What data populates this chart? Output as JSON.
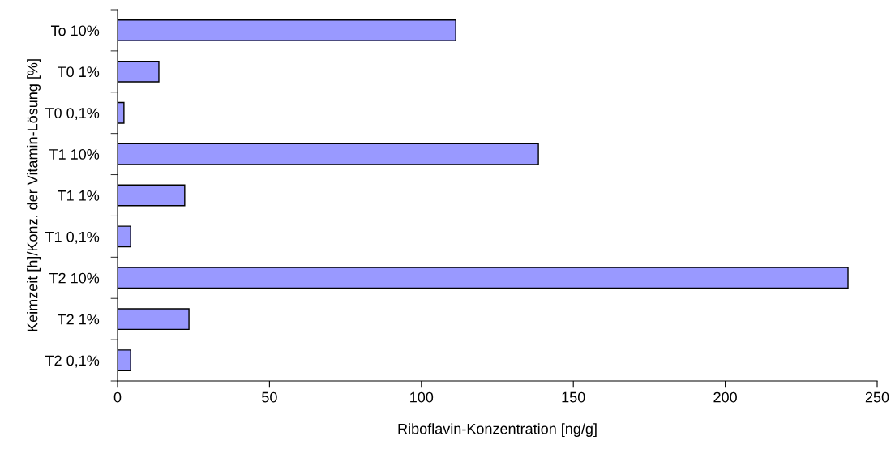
{
  "chart_data": {
    "type": "bar",
    "orientation": "horizontal",
    "xlabel": "Riboflavin-Konzentration [ng/g]",
    "ylabel": "Keimzeit [h]/Konz. der Vitamin-Lösung [%]",
    "categories": [
      "To 10%",
      "T0 1%",
      "T0 0,1%",
      "T1 10%",
      "T1 1%",
      "T1 0,1%",
      "T2 10%",
      "T2 1%",
      "T2 0,1%"
    ],
    "values": [
      111.3,
      13.6,
      2.1,
      138.5,
      22.1,
      4.3,
      240.4,
      23.5,
      4.3
    ],
    "color": "#9999ff",
    "xlim": [
      0,
      250
    ],
    "xticks": [
      0,
      50,
      100,
      150,
      200,
      250
    ],
    "grid": false,
    "legend": false
  }
}
